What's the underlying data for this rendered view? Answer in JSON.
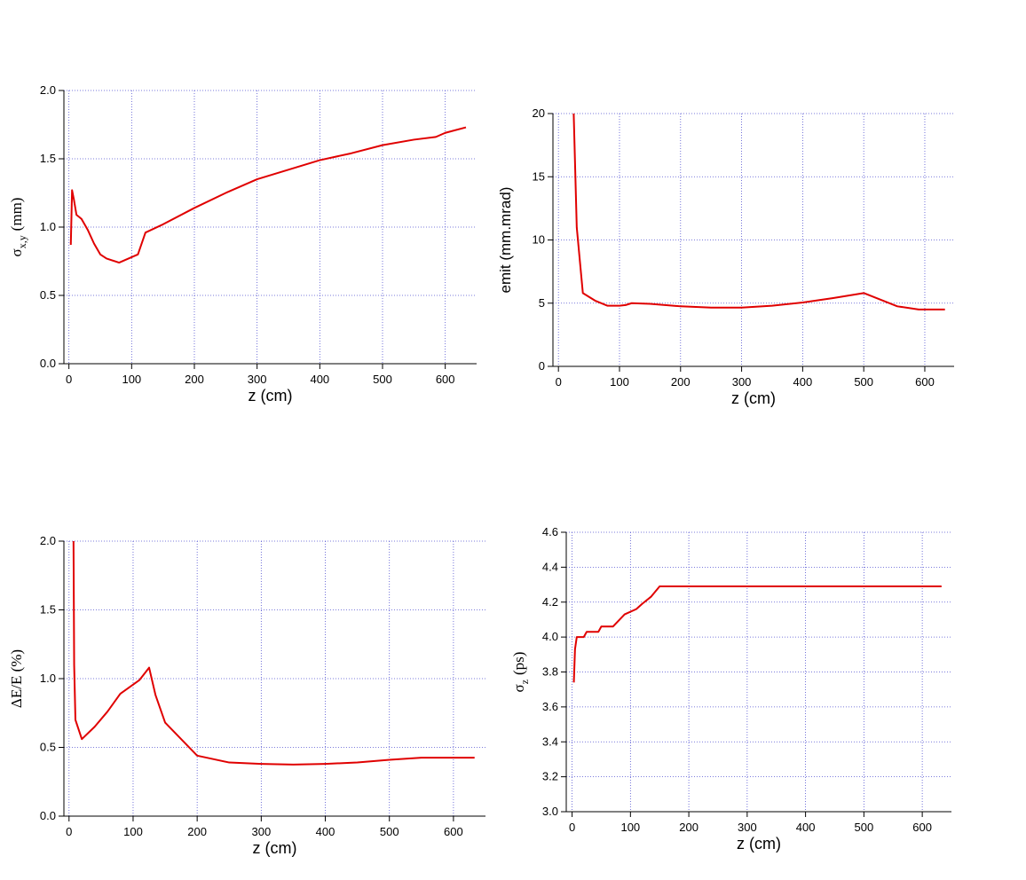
{
  "chart_data": [
    {
      "type": "line",
      "xlabel": "z (cm)",
      "ylabel": {
        "symbol": "σ",
        "subscript": "x,y",
        "unit": "(mm)"
      },
      "x": [
        3,
        5,
        8,
        12,
        20,
        30,
        40,
        50,
        60,
        80,
        110,
        122,
        150,
        200,
        250,
        300,
        350,
        400,
        450,
        500,
        550,
        585,
        600,
        633
      ],
      "values": [
        0.87,
        1.27,
        1.2,
        1.09,
        1.06,
        0.98,
        0.88,
        0.8,
        0.77,
        0.74,
        0.8,
        0.96,
        1.02,
        1.14,
        1.25,
        1.35,
        1.42,
        1.49,
        1.54,
        1.6,
        1.64,
        1.66,
        1.69,
        1.73
      ],
      "color": "#e00000",
      "grid": true,
      "xlim": [
        -8,
        650
      ],
      "xticks": [
        0,
        100,
        200,
        300,
        400,
        500,
        600
      ],
      "ylim": [
        0,
        2
      ],
      "yticks": [
        {
          "value": 0,
          "label": "0.0"
        },
        0.5,
        {
          "value": 1,
          "label": "1.0"
        },
        1.5,
        {
          "value": 2,
          "label": "2.0"
        }
      ]
    },
    {
      "type": "line",
      "xlabel": "z (cm)",
      "ylabel": "emit (mm.mrad)",
      "x": [
        25,
        30,
        40,
        60,
        80,
        100,
        110,
        120,
        150,
        200,
        250,
        300,
        350,
        400,
        450,
        500,
        555,
        590,
        633
      ],
      "values": [
        20,
        11,
        5.8,
        5.2,
        4.8,
        4.8,
        4.85,
        5.0,
        4.95,
        4.75,
        4.65,
        4.65,
        4.8,
        5.05,
        5.4,
        5.8,
        4.75,
        4.5,
        4.5
      ],
      "color": "#e00000",
      "grid": true,
      "xlim": [
        -9,
        648
      ],
      "xticks": [
        0,
        100,
        200,
        300,
        400,
        500,
        600
      ],
      "ylim": [
        0,
        20
      ],
      "yticks": [
        0,
        5,
        10,
        15,
        20
      ]
    },
    {
      "type": "line",
      "xlabel": "z (cm)",
      "ylabel": "ΔE/E (%)",
      "x": [
        7,
        8,
        10,
        20,
        40,
        60,
        80,
        110,
        125,
        135,
        150,
        200,
        250,
        300,
        350,
        400,
        450,
        500,
        550,
        633
      ],
      "values": [
        2.0,
        1.1,
        0.7,
        0.56,
        0.65,
        0.76,
        0.89,
        0.99,
        1.08,
        0.88,
        0.68,
        0.44,
        0.39,
        0.38,
        0.375,
        0.38,
        0.39,
        0.41,
        0.425,
        0.425
      ],
      "color": "#e00000",
      "grid": true,
      "xlim": [
        -8,
        650
      ],
      "xticks": [
        0,
        100,
        200,
        300,
        400,
        500,
        600
      ],
      "ylim": [
        0,
        2
      ],
      "yticks": [
        {
          "value": 0,
          "label": "0.0"
        },
        0.5,
        {
          "value": 1,
          "label": "1.0"
        },
        1.5,
        {
          "value": 2,
          "label": "2.0"
        }
      ]
    },
    {
      "type": "line",
      "xlabel": "z (cm)",
      "ylabel": {
        "symbol": "σ",
        "subscript": "z",
        "unit": "(ps)"
      },
      "x": [
        3,
        5,
        8,
        20,
        25,
        45,
        50,
        70,
        90,
        110,
        120,
        135,
        150,
        633
      ],
      "values": [
        3.74,
        3.93,
        4.0,
        4.0,
        4.03,
        4.03,
        4.06,
        4.06,
        4.13,
        4.16,
        4.19,
        4.23,
        4.29,
        4.29
      ],
      "color": "#e00000",
      "grid": true,
      "xlim": [
        -10,
        650
      ],
      "xticks": [
        0,
        100,
        200,
        300,
        400,
        500,
        600
      ],
      "ylim": [
        3,
        4.6
      ],
      "yticks": [
        {
          "value": 3,
          "label": "3.0"
        },
        3.2,
        3.4,
        3.6,
        3.8,
        {
          "value": 4,
          "label": "4.0"
        },
        4.2,
        4.4,
        4.6
      ]
    }
  ]
}
